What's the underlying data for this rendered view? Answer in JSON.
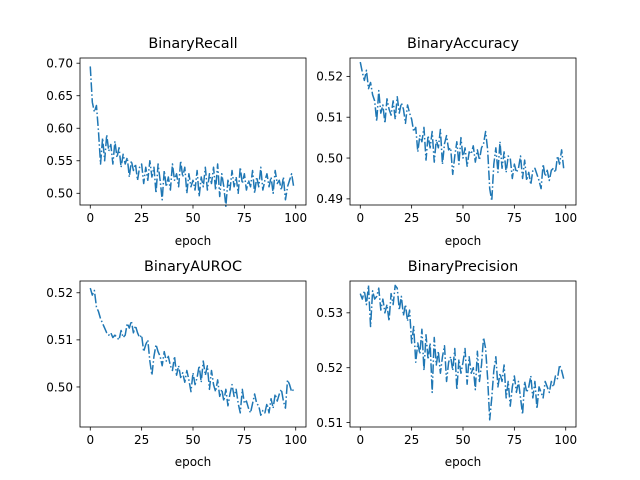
{
  "figure": {
    "background": "#ffffff",
    "line_color": "#1f77b4"
  },
  "chart_data": [
    {
      "type": "line",
      "title": "BinaryRecall",
      "xlabel": "epoch",
      "ylabel": "",
      "xlim": [
        -5,
        105
      ],
      "ylim": [
        0.482,
        0.708
      ],
      "xticks": [
        0,
        25,
        50,
        75,
        100
      ],
      "yticks": [
        0.5,
        0.55,
        0.6,
        0.65,
        0.7
      ],
      "ytick_labels": [
        "0.50",
        "0.55",
        "0.60",
        "0.65",
        "0.70"
      ],
      "grid": false,
      "series": [
        {
          "x": [
            0,
            1,
            2,
            3,
            4,
            5,
            6,
            7,
            8,
            9,
            10,
            11,
            12,
            13,
            14,
            15,
            16,
            17,
            18,
            19,
            20,
            21,
            22,
            23,
            24,
            25,
            26,
            27,
            28,
            29,
            30,
            31,
            32,
            33,
            34,
            35,
            36,
            37,
            38,
            39,
            40,
            41,
            42,
            43,
            44,
            45,
            46,
            47,
            48,
            49,
            50,
            51,
            52,
            53,
            54,
            55,
            56,
            57,
            58,
            59,
            60,
            61,
            62,
            63,
            64,
            65,
            66,
            67,
            68,
            69,
            70,
            71,
            72,
            73,
            74,
            75,
            76,
            77,
            78,
            79,
            80,
            81,
            82,
            83,
            84,
            85,
            86,
            87,
            88,
            89,
            90,
            91,
            92,
            93,
            94,
            95,
            96,
            97,
            98,
            99
          ],
          "y": [
            0.695,
            0.64,
            0.625,
            0.635,
            0.595,
            0.545,
            0.585,
            0.55,
            0.59,
            0.565,
            0.575,
            0.545,
            0.58,
            0.555,
            0.57,
            0.54,
            0.56,
            0.545,
            0.555,
            0.525,
            0.55,
            0.535,
            0.545,
            0.52,
            0.54,
            0.545,
            0.515,
            0.54,
            0.52,
            0.55,
            0.525,
            0.54,
            0.5,
            0.545,
            0.52,
            0.49,
            0.535,
            0.51,
            0.525,
            0.505,
            0.545,
            0.52,
            0.53,
            0.51,
            0.55,
            0.525,
            0.54,
            0.5,
            0.53,
            0.51,
            0.52,
            0.505,
            0.535,
            0.495,
            0.525,
            0.51,
            0.54,
            0.505,
            0.53,
            0.515,
            0.54,
            0.505,
            0.545,
            0.495,
            0.53,
            0.51,
            0.48,
            0.52,
            0.505,
            0.535,
            0.51,
            0.525,
            0.5,
            0.54,
            0.515,
            0.53,
            0.505,
            0.52,
            0.51,
            0.535,
            0.5,
            0.525,
            0.51,
            0.54,
            0.505,
            0.52,
            0.53,
            0.51,
            0.525,
            0.5,
            0.535,
            0.515,
            0.52,
            0.505,
            0.525,
            0.49,
            0.51,
            0.52,
            0.53,
            0.51
          ]
        }
      ]
    },
    {
      "type": "line",
      "title": "BinaryAccuracy",
      "xlabel": "epoch",
      "ylabel": "",
      "xlim": [
        -5,
        105
      ],
      "ylim": [
        0.4885,
        0.5245
      ],
      "xticks": [
        0,
        25,
        50,
        75,
        100
      ],
      "yticks": [
        0.49,
        0.5,
        0.51,
        0.52
      ],
      "ytick_labels": [
        "0.49",
        "0.50",
        "0.51",
        "0.52"
      ],
      "grid": false,
      "series": [
        {
          "x": [
            0,
            1,
            2,
            3,
            4,
            5,
            6,
            7,
            8,
            9,
            10,
            11,
            12,
            13,
            14,
            15,
            16,
            17,
            18,
            19,
            20,
            21,
            22,
            23,
            24,
            25,
            26,
            27,
            28,
            29,
            30,
            31,
            32,
            33,
            34,
            35,
            36,
            37,
            38,
            39,
            40,
            41,
            42,
            43,
            44,
            45,
            46,
            47,
            48,
            49,
            50,
            51,
            52,
            53,
            54,
            55,
            56,
            57,
            58,
            59,
            60,
            61,
            62,
            63,
            64,
            65,
            66,
            67,
            68,
            69,
            70,
            71,
            72,
            73,
            74,
            75,
            76,
            77,
            78,
            79,
            80,
            81,
            82,
            83,
            84,
            85,
            86,
            87,
            88,
            89,
            90,
            91,
            92,
            93,
            94,
            95,
            96,
            97,
            98,
            99
          ],
          "y": [
            0.5235,
            0.521,
            0.519,
            0.5215,
            0.517,
            0.5185,
            0.5155,
            0.514,
            0.509,
            0.5165,
            0.511,
            0.513,
            0.5085,
            0.5145,
            0.512,
            0.5105,
            0.514,
            0.5095,
            0.515,
            0.511,
            0.5135,
            0.512,
            0.5085,
            0.513,
            0.511,
            0.5095,
            0.5065,
            0.5075,
            0.5015,
            0.5055,
            0.504,
            0.5075,
            0.4995,
            0.5055,
            0.5025,
            0.5065,
            0.499,
            0.5045,
            0.5025,
            0.507,
            0.4985,
            0.5035,
            0.5055,
            0.502,
            0.5025,
            0.496,
            0.5005,
            0.504,
            0.4985,
            0.505,
            0.5,
            0.5025,
            0.498,
            0.5015,
            0.501,
            0.503,
            0.499,
            0.502,
            0.4995,
            0.5025,
            0.5035,
            0.5065,
            0.502,
            0.4925,
            0.4895,
            0.4985,
            0.5025,
            0.4965,
            0.504,
            0.4975,
            0.5015,
            0.4965,
            0.5005,
            0.5,
            0.495,
            0.4985,
            0.4965,
            0.4975,
            0.5005,
            0.495,
            0.4995,
            0.4945,
            0.4965,
            0.4935,
            0.497,
            0.4975,
            0.496,
            0.4945,
            0.4925,
            0.4985,
            0.4955,
            0.497,
            0.4945,
            0.497,
            0.4975,
            0.4965,
            0.5005,
            0.4985,
            0.502,
            0.4975
          ]
        }
      ]
    },
    {
      "type": "line",
      "title": "BinaryAUROC",
      "xlabel": "epoch",
      "ylabel": "",
      "xlim": [
        -5,
        105
      ],
      "ylim": [
        0.4915,
        0.5225
      ],
      "xticks": [
        0,
        25,
        50,
        75,
        100
      ],
      "yticks": [
        0.5,
        0.51,
        0.52
      ],
      "ytick_labels": [
        "0.50",
        "0.51",
        "0.52"
      ],
      "grid": false,
      "series": [
        {
          "x": [
            0,
            1,
            2,
            3,
            4,
            5,
            6,
            7,
            8,
            9,
            10,
            11,
            12,
            13,
            14,
            15,
            16,
            17,
            18,
            19,
            20,
            21,
            22,
            23,
            24,
            25,
            26,
            27,
            28,
            29,
            30,
            31,
            32,
            33,
            34,
            35,
            36,
            37,
            38,
            39,
            40,
            41,
            42,
            43,
            44,
            45,
            46,
            47,
            48,
            49,
            50,
            51,
            52,
            53,
            54,
            55,
            56,
            57,
            58,
            59,
            60,
            61,
            62,
            63,
            64,
            65,
            66,
            67,
            68,
            69,
            70,
            71,
            72,
            73,
            74,
            75,
            76,
            77,
            78,
            79,
            80,
            81,
            82,
            83,
            84,
            85,
            86,
            87,
            88,
            89,
            90,
            91,
            92,
            93,
            94,
            95,
            96,
            97,
            98,
            99
          ],
          "y": [
            0.521,
            0.5195,
            0.5205,
            0.517,
            0.516,
            0.5145,
            0.5135,
            0.5125,
            0.5115,
            0.511,
            0.5115,
            0.5105,
            0.511,
            0.5105,
            0.51,
            0.512,
            0.5105,
            0.511,
            0.5135,
            0.5125,
            0.514,
            0.5115,
            0.513,
            0.5115,
            0.5105,
            0.511,
            0.5075,
            0.509,
            0.51,
            0.5055,
            0.5025,
            0.5065,
            0.509,
            0.5075,
            0.5065,
            0.5045,
            0.5075,
            0.5055,
            0.5065,
            0.5045,
            0.5035,
            0.5065,
            0.5025,
            0.5045,
            0.502,
            0.503,
            0.501,
            0.5035,
            0.5015,
            0.499,
            0.503,
            0.5005,
            0.502,
            0.5045,
            0.501,
            0.5055,
            0.5025,
            0.5045,
            0.4995,
            0.5035,
            0.5005,
            0.499,
            0.5015,
            0.498,
            0.4995,
            0.497,
            0.4995,
            0.496,
            0.4985,
            0.5005,
            0.498,
            0.4995,
            0.4965,
            0.4945,
            0.4995,
            0.4965,
            0.497,
            0.4955,
            0.4945,
            0.4965,
            0.4985,
            0.4965,
            0.496,
            0.494,
            0.495,
            0.4945,
            0.4965,
            0.4945,
            0.4975,
            0.4955,
            0.4985,
            0.497,
            0.4985,
            0.4995,
            0.497,
            0.4955,
            0.5015,
            0.5005,
            0.499,
            0.4995
          ]
        }
      ]
    },
    {
      "type": "line",
      "title": "BinaryPrecision",
      "xlabel": "epoch",
      "ylabel": "",
      "xlim": [
        -5,
        105
      ],
      "ylim": [
        0.5092,
        0.5358
      ],
      "xticks": [
        0,
        25,
        50,
        75,
        100
      ],
      "yticks": [
        0.51,
        0.52,
        0.53
      ],
      "ytick_labels": [
        "0.51",
        "0.52",
        "0.53"
      ],
      "grid": false,
      "series": [
        {
          "x": [
            0,
            1,
            2,
            3,
            4,
            5,
            6,
            7,
            8,
            9,
            10,
            11,
            12,
            13,
            14,
            15,
            16,
            17,
            18,
            19,
            20,
            21,
            22,
            23,
            24,
            25,
            26,
            27,
            28,
            29,
            30,
            31,
            32,
            33,
            34,
            35,
            36,
            37,
            38,
            39,
            40,
            41,
            42,
            43,
            44,
            45,
            46,
            47,
            48,
            49,
            50,
            51,
            52,
            53,
            54,
            55,
            56,
            57,
            58,
            59,
            60,
            61,
            62,
            63,
            64,
            65,
            66,
            67,
            68,
            69,
            70,
            71,
            72,
            73,
            74,
            75,
            76,
            77,
            78,
            79,
            80,
            81,
            82,
            83,
            84,
            85,
            86,
            87,
            88,
            89,
            90,
            91,
            92,
            93,
            94,
            95,
            96,
            97,
            98,
            99
          ],
          "y": [
            0.5335,
            0.5325,
            0.534,
            0.5315,
            0.535,
            0.5275,
            0.534,
            0.5325,
            0.533,
            0.5345,
            0.5305,
            0.5325,
            0.53,
            0.5315,
            0.5285,
            0.5335,
            0.5315,
            0.535,
            0.5345,
            0.5305,
            0.533,
            0.5295,
            0.5315,
            0.5285,
            0.5305,
            0.5245,
            0.5275,
            0.521,
            0.5245,
            0.5225,
            0.527,
            0.5195,
            0.526,
            0.5215,
            0.5245,
            0.5155,
            0.5255,
            0.5205,
            0.523,
            0.519,
            0.522,
            0.524,
            0.5175,
            0.521,
            0.522,
            0.5195,
            0.5235,
            0.516,
            0.5215,
            0.519,
            0.521,
            0.5235,
            0.517,
            0.522,
            0.519,
            0.52,
            0.516,
            0.523,
            0.5175,
            0.5205,
            0.5255,
            0.5235,
            0.518,
            0.5105,
            0.5145,
            0.5195,
            0.522,
            0.5165,
            0.519,
            0.5175,
            0.5205,
            0.5145,
            0.5175,
            0.513,
            0.5165,
            0.5185,
            0.5155,
            0.5175,
            0.5145,
            0.5115,
            0.5175,
            0.5155,
            0.5165,
            0.5185,
            0.5145,
            0.5175,
            0.5125,
            0.5165,
            0.5155,
            0.5145,
            0.5175,
            0.5165,
            0.5155,
            0.5175,
            0.5165,
            0.5185,
            0.518,
            0.5205,
            0.5195,
            0.518
          ]
        }
      ]
    }
  ]
}
